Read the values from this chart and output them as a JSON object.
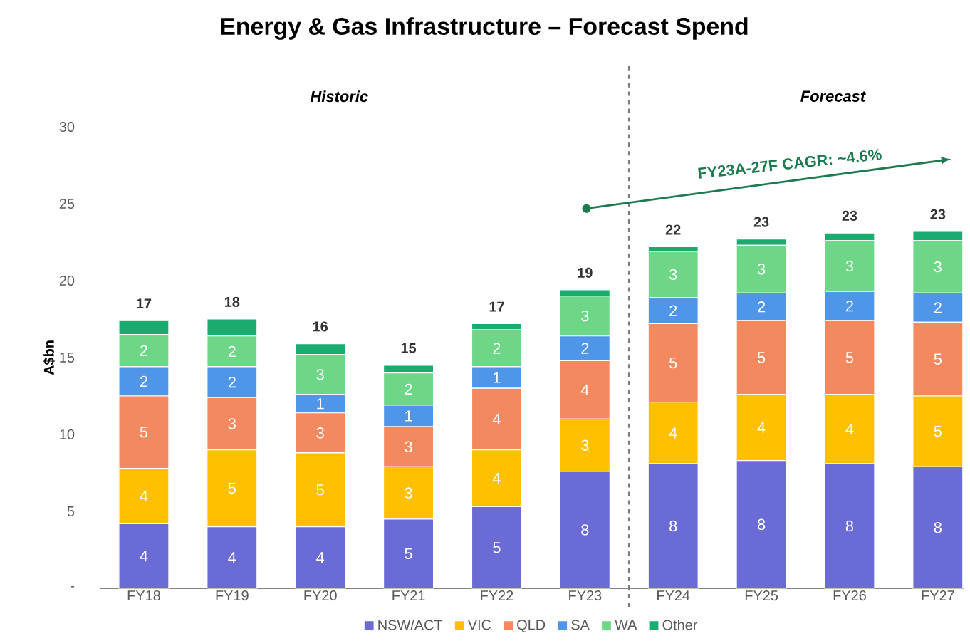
{
  "chart_data": {
    "type": "bar",
    "title": "Energy & Gas Infrastructure – Forecast Spend",
    "ylabel": "A$bn",
    "categories": [
      "FY18",
      "FY19",
      "FY20",
      "FY21",
      "FY22",
      "FY23",
      "FY24",
      "FY25",
      "FY26",
      "FY27"
    ],
    "stacked": true,
    "series": [
      {
        "name": "NSW/ACT",
        "color": "#6b6bd6",
        "values": [
          4.2,
          4.0,
          4.0,
          4.5,
          5.3,
          7.6,
          8.1,
          8.3,
          8.1,
          7.9
        ],
        "value_labels": [
          "4",
          "4",
          "4",
          "5",
          "5",
          "8",
          "8",
          "8",
          "8",
          "8"
        ]
      },
      {
        "name": "VIC",
        "color": "#ffc000",
        "values": [
          3.6,
          5.0,
          4.8,
          3.4,
          3.7,
          3.4,
          4.0,
          4.3,
          4.5,
          4.6
        ],
        "value_labels": [
          "4",
          "5",
          "5",
          "3",
          "4",
          "3",
          "4",
          "4",
          "4",
          "5"
        ]
      },
      {
        "name": "QLD",
        "color": "#f4895f",
        "values": [
          4.7,
          3.4,
          2.6,
          2.6,
          4.0,
          3.8,
          5.1,
          4.8,
          4.8,
          4.8
        ],
        "value_labels": [
          "5",
          "3",
          "3",
          "3",
          "4",
          "4",
          "5",
          "5",
          "5",
          "5"
        ]
      },
      {
        "name": "SA",
        "color": "#4f96e8",
        "values": [
          1.9,
          2.0,
          1.2,
          1.4,
          1.4,
          1.6,
          1.7,
          1.8,
          1.9,
          1.9
        ],
        "value_labels": [
          "2",
          "2",
          "1",
          "1",
          "1",
          "2",
          "2",
          "2",
          "2",
          "2"
        ]
      },
      {
        "name": "WA",
        "color": "#6dd687",
        "values": [
          2.1,
          2.0,
          2.6,
          2.1,
          2.4,
          2.6,
          3.0,
          3.1,
          3.3,
          3.4
        ],
        "value_labels": [
          "2",
          "2",
          "3",
          "2",
          "2",
          "3",
          "3",
          "3",
          "3",
          "3"
        ]
      },
      {
        "name": "Other",
        "color": "#1aab6e",
        "values": [
          0.9,
          1.1,
          0.7,
          0.5,
          0.4,
          0.4,
          0.3,
          0.4,
          0.5,
          0.6
        ]
      }
    ],
    "totals": [
      "17",
      "18",
      "16",
      "15",
      "17",
      "19",
      "22",
      "23",
      "23",
      "23"
    ],
    "ylim": [
      0,
      30
    ],
    "yticks": [
      {
        "value": 0,
        "label": "-"
      },
      5,
      10,
      15,
      20,
      25,
      30
    ],
    "annotations": [
      "Historic",
      "Forecast",
      "FY23A-27F CAGR: ~4.6%"
    ],
    "legend": "bottom",
    "grid": false
  }
}
